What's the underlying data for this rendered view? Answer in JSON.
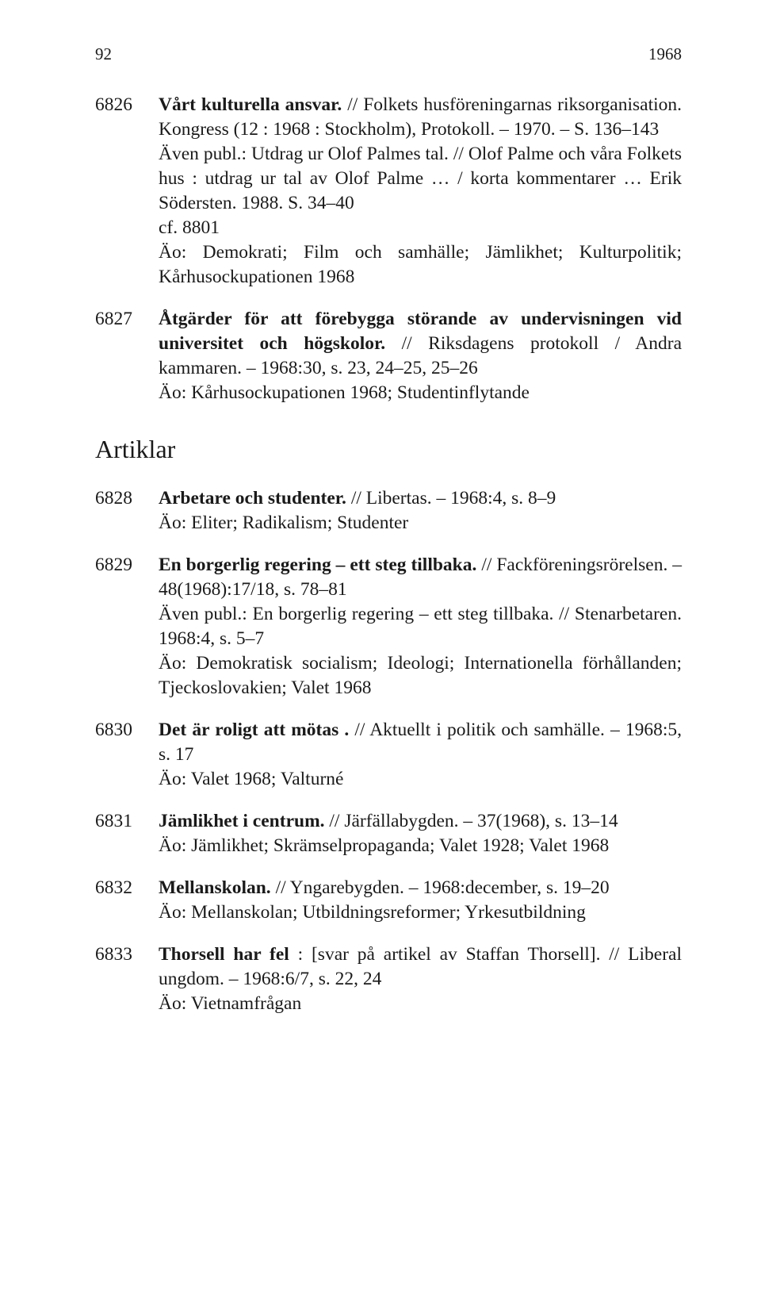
{
  "page_number": "92",
  "year": "1968",
  "section_title": "Artiklar",
  "entries": [
    {
      "num": "6826",
      "title_bold": "Vårt kulturella ansvar.",
      "title_rest": " // Folkets husföreningarnas riksorganisation. Kongress (12 : 1968 : Stockholm), Protokoll. – 1970. – S. 136–143",
      "lines": [
        "Även publ.: Utdrag ur Olof Palmes tal. // Olof Palme och våra Folkets hus : utdrag ur tal av Olof Palme … / korta kommentarer … Erik Södersten. 1988. S. 34–40",
        "cf. 8801",
        "Äo: Demokrati; Film och samhälle; Jämlikhet; Kulturpolitik; Kårhusockupationen 1968"
      ]
    },
    {
      "num": "6827",
      "title_bold": "Åtgärder för att förebygga störande av undervisningen vid universitet och högskolor.",
      "title_rest": " // Riksdagens protokoll / Andra kammaren. – 1968:30, s. 23, 24–25, 25–26",
      "lines": [
        "Äo: Kårhusockupationen 1968; Studentinflytande"
      ]
    },
    {
      "num": "6828",
      "title_bold": "Arbetare och studenter.",
      "title_rest": " // Libertas. – 1968:4, s. 8–9",
      "lines": [
        "Äo: Eliter; Radikalism; Studenter"
      ]
    },
    {
      "num": "6829",
      "title_bold": "En borgerlig regering – ett steg tillbaka.",
      "title_rest": " // Fackföreningsrörelsen. – 48(1968):17/18, s. 78–81",
      "lines": [
        "Även publ.: En borgerlig regering – ett steg tillbaka. // Stenarbetaren. 1968:4, s. 5–7",
        "Äo: Demokratisk socialism; Ideologi; Internationella förhållanden; Tjeckoslovakien; Valet 1968"
      ]
    },
    {
      "num": "6830",
      "title_bold": "Det är roligt att mötas .",
      "title_rest": " // Aktuellt i politik och samhälle. – 1968:5, s. 17",
      "lines": [
        "Äo: Valet 1968; Valturné"
      ]
    },
    {
      "num": "6831",
      "title_bold": "Jämlikhet i centrum.",
      "title_rest": " // Järfällabygden. – 37(1968), s. 13–14",
      "lines": [
        "Äo: Jämlikhet; Skrämselpropaganda; Valet 1928; Valet 1968"
      ]
    },
    {
      "num": "6832",
      "title_bold": "Mellanskolan.",
      "title_rest": " // Yngarebygden. – 1968:december, s. 19–20",
      "lines": [
        "Äo: Mellanskolan; Utbildningsreformer; Yrkesutbildning"
      ]
    },
    {
      "num": "6833",
      "title_bold": "Thorsell har fel",
      "title_rest": " : [svar på artikel av Staffan Thorsell]. // Liberal ungdom. – 1968:6/7, s. 22, 24",
      "lines": [
        "Äo: Vietnamfrågan"
      ]
    }
  ]
}
